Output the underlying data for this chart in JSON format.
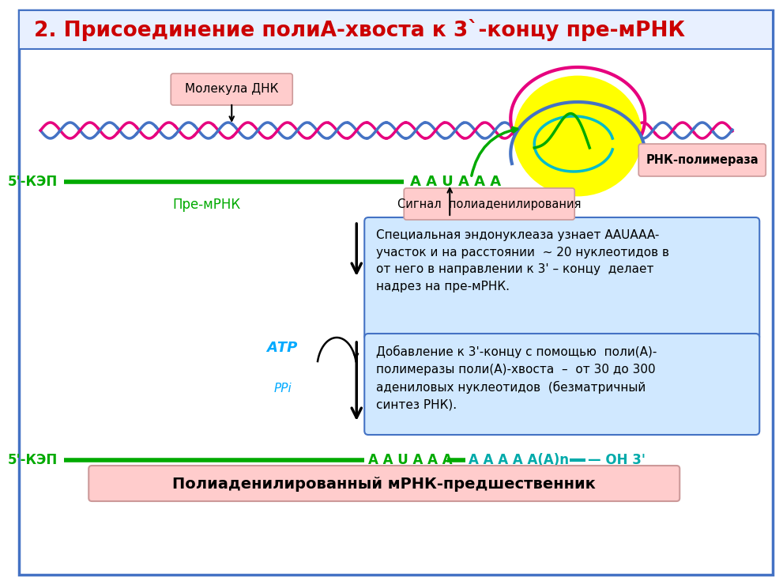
{
  "title": "2. Присоединение полиА-хвоста к 3`-концу пре-мРНК",
  "title_color": "#cc0000",
  "bg_color": "#ffffff",
  "border_color": "#4472c4",
  "dna_label": "Молекула ДНК",
  "pre_mrna_label": "Пре-мРНК",
  "cap_label_1": "5'-КЭП",
  "cap_label_2": "5'-КЭП",
  "rna_pol_label": "РНК-полимераза",
  "signal_label": "Сигнал  полиаденилирования",
  "aauaaa_label": "A A U A A A",
  "atp_label": "АТР",
  "ppi_label": "РРi",
  "box1_text": "Специальная эндонуклеаза узнает АAUAAA-\nучасток и на расстоянии  ~ 20 нуклеотидов в\nот него в направлении к 3' – концу  делает\nнадрез на пре-мРНК.",
  "box2_text": "Добавление к 3'-концу с помощью  поли(А)-\nполимеразы поли(А)-хвоста  –  от 30 до 300\nадениловых нуклеотидов  (безматричный\nсинтез РНК).",
  "bottom_label": "Полиаденилированный мРНК-предшественник",
  "bottom_seq1": "A A U A A A",
  "bottom_seq2": "A A A A A(A)n",
  "bottom_oh": "— OH 3'",
  "mrna_color": "#00aa00",
  "bottom_seq_color": "#00aaaa",
  "dna_color1": "#e6007e",
  "dna_color2": "#4472c4",
  "rna_pol_color": "#ffff00",
  "atp_color": "#00aaff",
  "signal_box_color": "#ffcccc",
  "box1_color": "#d0e8ff",
  "box2_color": "#d0e8ff",
  "bottom_box_color": "#ffcccc",
  "arrow_color": "#333333"
}
